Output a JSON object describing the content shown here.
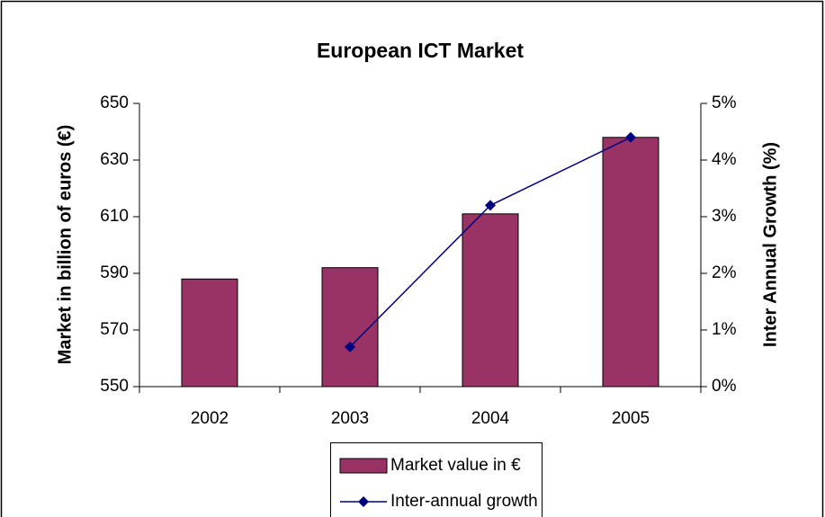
{
  "chart_data": {
    "type": "bar_line",
    "title": "European ICT Market",
    "ylabel": "Market in billion of euros (€)",
    "y2label": "Inter Annual Growth (%)",
    "categories": [
      "2002",
      "2003",
      "2004",
      "2005"
    ],
    "series": [
      {
        "name": "Market value in €",
        "type": "bar",
        "color": "#993366",
        "values": [
          588,
          592,
          611,
          638
        ]
      },
      {
        "name": "Inter-annual growth",
        "type": "line",
        "axis": "y2",
        "color": "#000080",
        "values": [
          null,
          0.7,
          3.2,
          4.4
        ]
      }
    ],
    "ylim": [
      550,
      650
    ],
    "yticks": [
      550,
      570,
      590,
      610,
      630,
      650
    ],
    "y2lim": [
      0,
      5
    ],
    "y2ticks": [
      {
        "value": 0,
        "label": "0%"
      },
      {
        "value": 1,
        "label": "1%"
      },
      {
        "value": 2,
        "label": "2%"
      },
      {
        "value": 3,
        "label": "3%"
      },
      {
        "value": 4,
        "label": "4%"
      },
      {
        "value": 5,
        "label": "5%"
      }
    ],
    "legend": "bottom"
  }
}
